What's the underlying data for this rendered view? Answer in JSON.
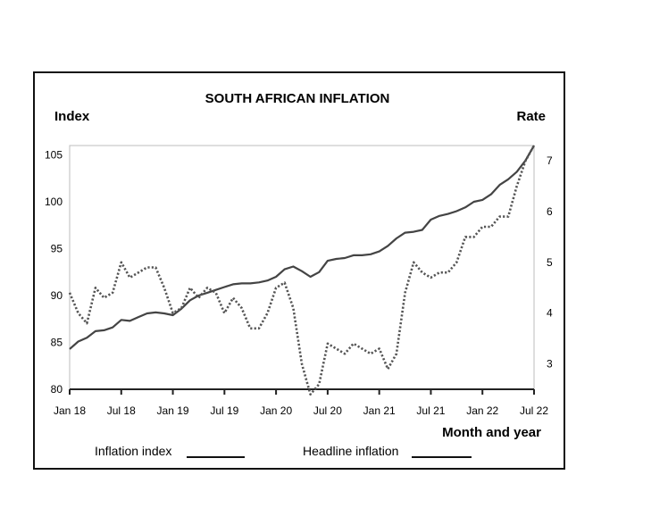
{
  "chart_data": {
    "type": "line",
    "title": "SOUTH AFRICAN INFLATION",
    "left_axis_title": "Index",
    "right_axis_title": "Rate",
    "xlabel": "Month and year",
    "x_ticks": [
      "Jan 18",
      "Jul 18",
      "Jan 19",
      "Jul 19",
      "Jan 20",
      "Jul 20",
      "Jan 21",
      "Jul 21",
      "Jan 22",
      "Jul 22"
    ],
    "left_ticks": [
      "80",
      "85",
      "90",
      "95",
      "100",
      "105"
    ],
    "right_ticks": [
      "3",
      "4",
      "5",
      "6",
      "7"
    ],
    "ylim_left": [
      80,
      106
    ],
    "ylim_right": [
      2.5,
      7.3
    ],
    "x": [
      "Jan 18",
      "Feb 18",
      "Mar 18",
      "Apr 18",
      "May 18",
      "Jun 18",
      "Jul 18",
      "Aug 18",
      "Sep 18",
      "Oct 18",
      "Nov 18",
      "Dec 18",
      "Jan 19",
      "Feb 19",
      "Mar 19",
      "Apr 19",
      "May 19",
      "Jun 19",
      "Jul 19",
      "Aug 19",
      "Sep 19",
      "Oct 19",
      "Nov 19",
      "Dec 19",
      "Jan 20",
      "Feb 20",
      "Mar 20",
      "Apr 20",
      "May 20",
      "Jun 20",
      "Jul 20",
      "Aug 20",
      "Sep 20",
      "Oct 20",
      "Nov 20",
      "Dec 20",
      "Jan 21",
      "Feb 21",
      "Mar 21",
      "Apr 21",
      "May 21",
      "Jun 21",
      "Jul 21",
      "Aug 21",
      "Sep 21",
      "Oct 21",
      "Nov 21",
      "Dec 21",
      "Jan 22",
      "Feb 22",
      "Mar 22",
      "Apr 22",
      "May 22",
      "Jun 22",
      "Jul 22"
    ],
    "series": [
      {
        "name": "Inflation index",
        "axis": "left",
        "style": "solid",
        "values": [
          84.3,
          85.1,
          85.5,
          86.2,
          86.3,
          86.6,
          87.4,
          87.3,
          87.7,
          88.1,
          88.2,
          88.1,
          87.9,
          88.6,
          89.5,
          90.0,
          90.3,
          90.6,
          90.9,
          91.2,
          91.3,
          91.3,
          91.4,
          91.6,
          92.0,
          92.8,
          93.1,
          92.6,
          92.0,
          92.5,
          93.7,
          93.9,
          94.0,
          94.3,
          94.3,
          94.4,
          94.7,
          95.3,
          96.1,
          96.7,
          96.8,
          97.0,
          98.1,
          98.5,
          98.7,
          99.0,
          99.4,
          100.0,
          100.2,
          100.8,
          101.8,
          102.4,
          103.2,
          104.4,
          106.0
        ]
      },
      {
        "name": "Headline inflation",
        "axis": "right",
        "style": "dotted",
        "values": [
          4.4,
          4.0,
          3.8,
          4.5,
          4.3,
          4.4,
          5.0,
          4.7,
          4.8,
          4.9,
          4.9,
          4.5,
          4.0,
          4.1,
          4.5,
          4.3,
          4.5,
          4.4,
          4.0,
          4.3,
          4.1,
          3.7,
          3.7,
          4.0,
          4.5,
          4.6,
          4.1,
          3.0,
          2.4,
          2.6,
          3.4,
          3.3,
          3.2,
          3.4,
          3.3,
          3.2,
          3.3,
          2.9,
          3.2,
          4.4,
          5.0,
          4.8,
          4.7,
          4.8,
          4.8,
          5.0,
          5.5,
          5.5,
          5.7,
          5.7,
          5.9,
          5.9,
          6.5,
          7.0,
          7.3
        ]
      }
    ],
    "legend": [
      {
        "label": "Inflation index",
        "style": "solid"
      },
      {
        "label": "Headline inflation",
        "style": "dotted"
      }
    ],
    "legend_position": "bottom",
    "grid": false
  }
}
